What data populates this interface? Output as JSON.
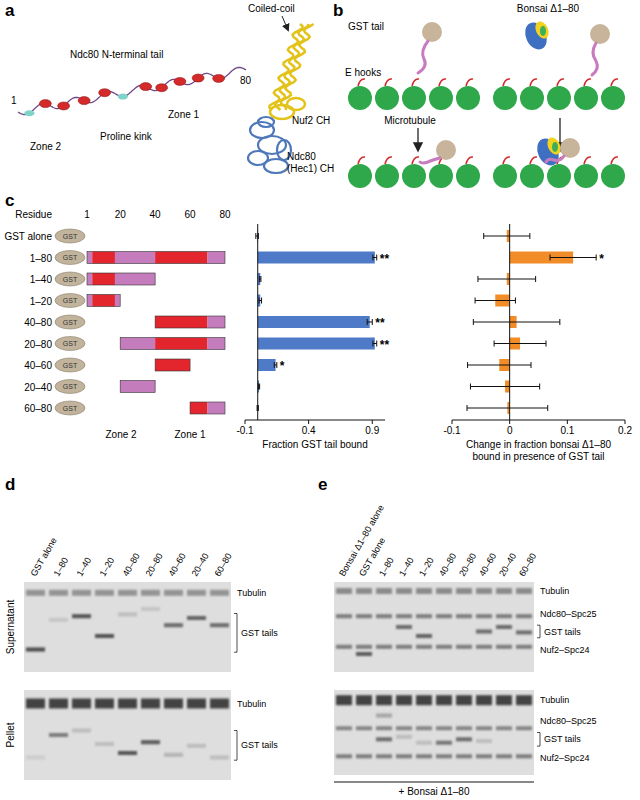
{
  "figure": {
    "panels": [
      "a",
      "b",
      "c",
      "d",
      "e"
    ],
    "a": {
      "coiled_coil": "Coiled-coil",
      "tail": "Ndc80 N-terminal tail",
      "first": "1",
      "last": "80",
      "zone2": "Zone 2",
      "proline_kink": "Proline kink",
      "zone1": "Zone 1",
      "nuf2_ch": "Nuf2 CH",
      "ndc80_ch": "Ndc80 (Hec1) CH"
    },
    "b": {
      "gst_tail": "GST tail",
      "bonsai": "Bonsai Δ1–80",
      "e_hooks": "E hooks",
      "microtubule": "Microtubule"
    },
    "c": {
      "residue": "Residue",
      "residue_ticks": [
        1,
        20,
        40,
        60,
        80
      ],
      "gst": "GST",
      "segments": [
        {
          "start": 1,
          "end": 4,
          "color": "#c47cbd"
        },
        {
          "start": 4,
          "end": 17,
          "color": "#e3262e"
        },
        {
          "start": 17,
          "end": 40,
          "color": "#c47cbd"
        },
        {
          "start": 40,
          "end": 70,
          "color": "#e3262e"
        },
        {
          "start": 70,
          "end": 80,
          "color": "#c47cbd"
        }
      ],
      "zones": [
        {
          "label": "Zone 2",
          "start": 1,
          "end": 40
        },
        {
          "label": "Zone 1",
          "start": 40,
          "end": 80
        }
      ],
      "constructs": [
        {
          "label": "GST alone",
          "range": null
        },
        {
          "label": "1–80",
          "range": [
            1,
            80
          ]
        },
        {
          "label": "1–40",
          "range": [
            1,
            40
          ]
        },
        {
          "label": "1–20",
          "range": [
            1,
            20
          ]
        },
        {
          "label": "40–80",
          "range": [
            40,
            80
          ]
        },
        {
          "label": "20–80",
          "range": [
            20,
            80
          ]
        },
        {
          "label": "40–60",
          "range": [
            40,
            60
          ]
        },
        {
          "label": "20–40",
          "range": [
            20,
            40
          ]
        },
        {
          "label": "60–80",
          "range": [
            60,
            80
          ]
        }
      ]
    },
    "d": {
      "lanes": [
        "GST alone",
        "1–80",
        "1–40",
        "1–20",
        "40–80",
        "20–80",
        "40–60",
        "20–40",
        "60–80"
      ],
      "supernatant": "Supernatant",
      "pellet": "Pellet",
      "tubulin": "Tubulin",
      "gst_tails": "GST tails"
    },
    "e": {
      "lanes": [
        "Bonsai Δ1–80 alone",
        "GST alone",
        "1–80",
        "1–40",
        "1–20",
        "40–80",
        "20–80",
        "40–60",
        "20–40",
        "60–80"
      ],
      "tubulin": "Tubulin",
      "ndc80_spc25": "Ndc80–Spc25",
      "gst_tails": "GST tails",
      "nuf2_spc24": "Nuf2–Spc24",
      "condition": "+ Bonsai Δ1–80"
    }
  },
  "chart_data": [
    {
      "type": "bar",
      "orientation": "horizontal",
      "categories": [
        "GST alone",
        "1–80",
        "1–40",
        "1–20",
        "40–80",
        "20–80",
        "40–60",
        "20–40",
        "60–80"
      ],
      "values": [
        -0.005,
        0.92,
        0.02,
        0.02,
        0.88,
        0.92,
        0.14,
        0.01,
        0.0
      ],
      "errors": [
        0.01,
        0.015,
        0.005,
        0.01,
        0.02,
        0.015,
        0.01,
        0.005,
        0.005
      ],
      "annotations": [
        null,
        "**",
        null,
        null,
        "**",
        "**",
        "*",
        null,
        null
      ],
      "color": "#4f7ac7",
      "xlabel": "Fraction GST tail bound",
      "xlim": [
        -0.1,
        1.0
      ],
      "xticks": [
        -0.1,
        0.4,
        0.9
      ],
      "tick_labels": "x"
    },
    {
      "type": "bar",
      "orientation": "horizontal",
      "categories": [
        "GST alone",
        "1–80",
        "1–40",
        "1–20",
        "40–80",
        "20–80",
        "40–60",
        "20–40",
        "60–80"
      ],
      "values": [
        -0.005,
        0.11,
        -0.005,
        -0.025,
        0.012,
        0.018,
        -0.018,
        -0.008,
        -0.004
      ],
      "errors": [
        0.04,
        0.04,
        0.05,
        0.035,
        0.075,
        0.045,
        0.055,
        0.06,
        0.07
      ],
      "annotations": [
        null,
        "*",
        null,
        null,
        null,
        null,
        null,
        null,
        null
      ],
      "color": "#f28c28",
      "xlabel": "Change in fraction bonsai Δ1–80 bound in presence of GST tail",
      "xlim": [
        -0.1,
        0.2
      ],
      "xticks": [
        -0.1,
        0,
        0.1,
        0.2
      ],
      "tick_labels": "x"
    }
  ]
}
